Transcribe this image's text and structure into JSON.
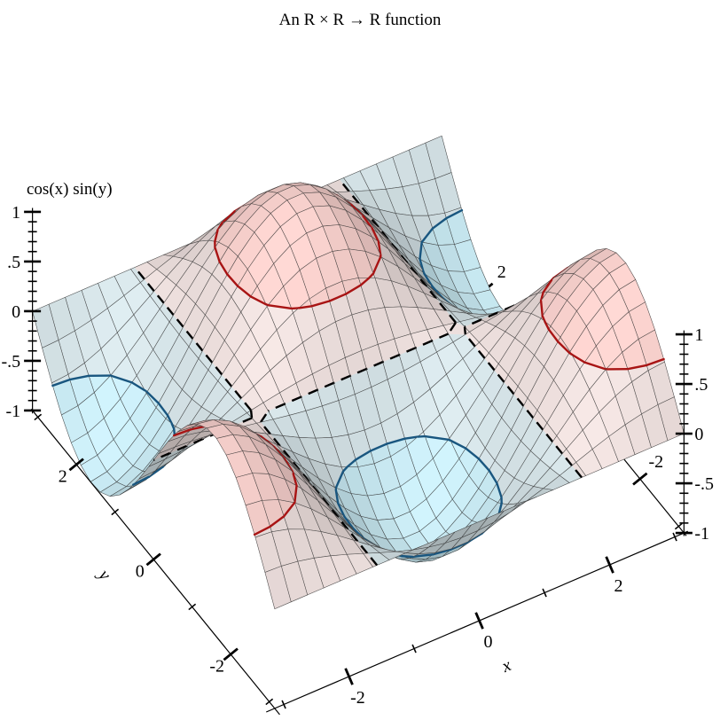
{
  "title": "An R × R → R function",
  "chart_data": {
    "type": "surface3d",
    "title": "An R × R → R function",
    "function": "cos(x) * sin(y)",
    "function_label": "cos(x) sin(y)",
    "x": {
      "label": "x",
      "range": [
        -3.14,
        3.14
      ],
      "major_ticks": [
        -2,
        0,
        2
      ],
      "major_labels": [
        "-2",
        "0",
        "2"
      ],
      "minor_ticks": [
        -3,
        -1,
        1,
        3
      ]
    },
    "y": {
      "label": "y",
      "range": [
        -3.14,
        3.14
      ],
      "major_ticks": [
        2,
        0,
        -2
      ],
      "major_labels": [
        "2",
        "0",
        "-2"
      ],
      "minor_ticks": [
        3,
        1,
        -1,
        -3
      ]
    },
    "z": {
      "label": "cos(x) sin(y)",
      "range": [
        -1,
        1
      ],
      "major_ticks": [
        1,
        0.5,
        0,
        -0.5,
        -1
      ],
      "major_labels": [
        "1",
        ".5",
        "0",
        "-.5",
        "-1"
      ],
      "minor_step": 0.1
    },
    "samples": 26,
    "bands": [
      {
        "min": -1.0,
        "max": -0.5,
        "color": "#c8e9f2"
      },
      {
        "min": -0.5,
        "max": 0.0,
        "color": "#d5e3e7"
      },
      {
        "min": 0.0,
        "max": 0.5,
        "color": "#ecdedc"
      },
      {
        "min": 0.5,
        "max": 1.0,
        "color": "#f6cfcb"
      }
    ],
    "contours": [
      {
        "level": -0.5,
        "color": "#19567f",
        "dash": "",
        "width": 2.4
      },
      {
        "level": 0.0,
        "color": "#000000",
        "dash": "11,8",
        "width": 2.4
      },
      {
        "level": 0.5,
        "color": "#a81414",
        "dash": "",
        "width": 2.4
      }
    ],
    "mesh_line_color": "#2f2f2f",
    "background": "#ffffff",
    "view": {
      "angle_deg": 30,
      "altitude_deg": 30
    },
    "projection": {
      "origin": [
        404,
        420
      ],
      "ex": [
        73.5,
        -31.5
      ],
      "ey": [
        -43.5,
        -53.5
      ],
      "ez": [
        0,
        -112
      ],
      "depth_dir": [
        0.5105,
        0.8599
      ]
    },
    "lighting": {
      "direction": [
        -0.35,
        -0.3,
        0.89
      ],
      "ambient": 0.55,
      "diffuse": 0.5
    }
  }
}
